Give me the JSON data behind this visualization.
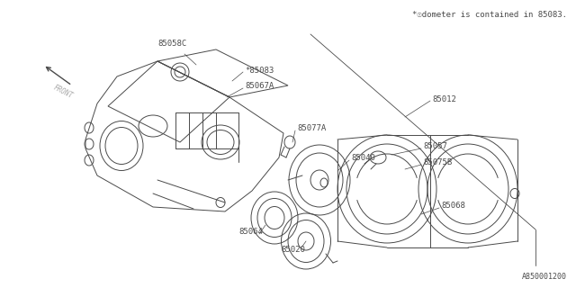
{
  "bg_color": "#ffffff",
  "line_color": "#4a4a4a",
  "text_color": "#4a4a4a",
  "title_note": "*☉dometer is contained in 85083.",
  "part_number_bottom": "A850001200",
  "front_label": "FRONT",
  "figsize": [
    6.4,
    3.2
  ],
  "dpi": 100
}
